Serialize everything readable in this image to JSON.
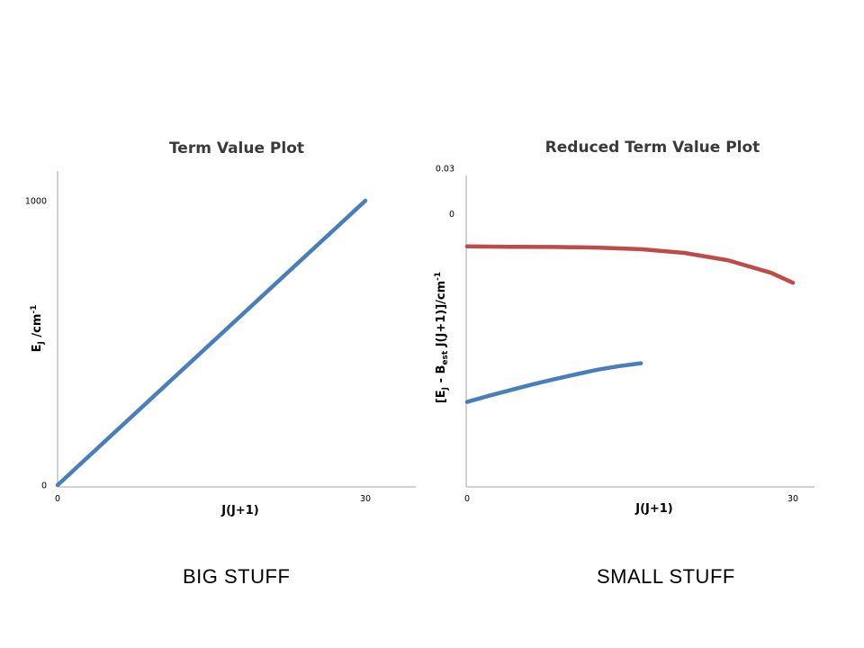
{
  "chart_data": [
    {
      "type": "line",
      "title": "Term Value Plot",
      "xlabel": "J(J+1)",
      "ylabel": {
        "main": "E",
        "sub": "J",
        "rest": " /cm",
        "sup": "-1"
      },
      "xlim": [
        0,
        30
      ],
      "ylim": [
        0,
        1000
      ],
      "x_ticks": [
        {
          "value": 0,
          "label": "0"
        },
        {
          "value": 30,
          "label": "30"
        }
      ],
      "y_ticks": [
        {
          "value": 0,
          "label": "0"
        },
        {
          "value": 1000,
          "label": "1000"
        }
      ],
      "grid": false,
      "series": [
        {
          "color": "#4a7ebb",
          "x": [
            0,
            30
          ],
          "y": [
            0,
            1000
          ]
        }
      ]
    },
    {
      "type": "line",
      "title": "Reduced Term Value Plot",
      "xlabel": "J(J+1)",
      "ylabel": {
        "pre": "[E",
        "sub1": "J",
        "mid": " - B",
        "sub2": "est",
        "rest": " J(J+1)]/cm",
        "sup": "-1"
      },
      "xlim": [
        0,
        30
      ],
      "ylim": [
        -0.18,
        0.04
      ],
      "x_ticks": [
        {
          "value": 0,
          "label": "0"
        },
        {
          "value": 30,
          "label": "30"
        }
      ],
      "y_ticks": [
        {
          "value": 0,
          "label": "0"
        },
        {
          "value": 0.03,
          "label": "0.03"
        }
      ],
      "grid": false,
      "series": [
        {
          "color": "#be4b48",
          "x": [
            0,
            4,
            8,
            12,
            16,
            20,
            24,
            28,
            30
          ],
          "y": [
            -0.0215,
            -0.0218,
            -0.0219,
            -0.0223,
            -0.0234,
            -0.0258,
            -0.0306,
            -0.039,
            -0.0455
          ]
        },
        {
          "color": "#4a7ebb",
          "x": [
            0,
            2,
            4,
            6,
            8,
            10,
            12,
            14,
            16
          ],
          "y": [
            -0.124,
            -0.12,
            -0.1162,
            -0.1125,
            -0.1091,
            -0.1059,
            -0.1028,
            -0.1004,
            -0.0985
          ]
        }
      ]
    }
  ],
  "captions": {
    "left": "BIG STUFF",
    "right": "SMALL STUFF"
  }
}
